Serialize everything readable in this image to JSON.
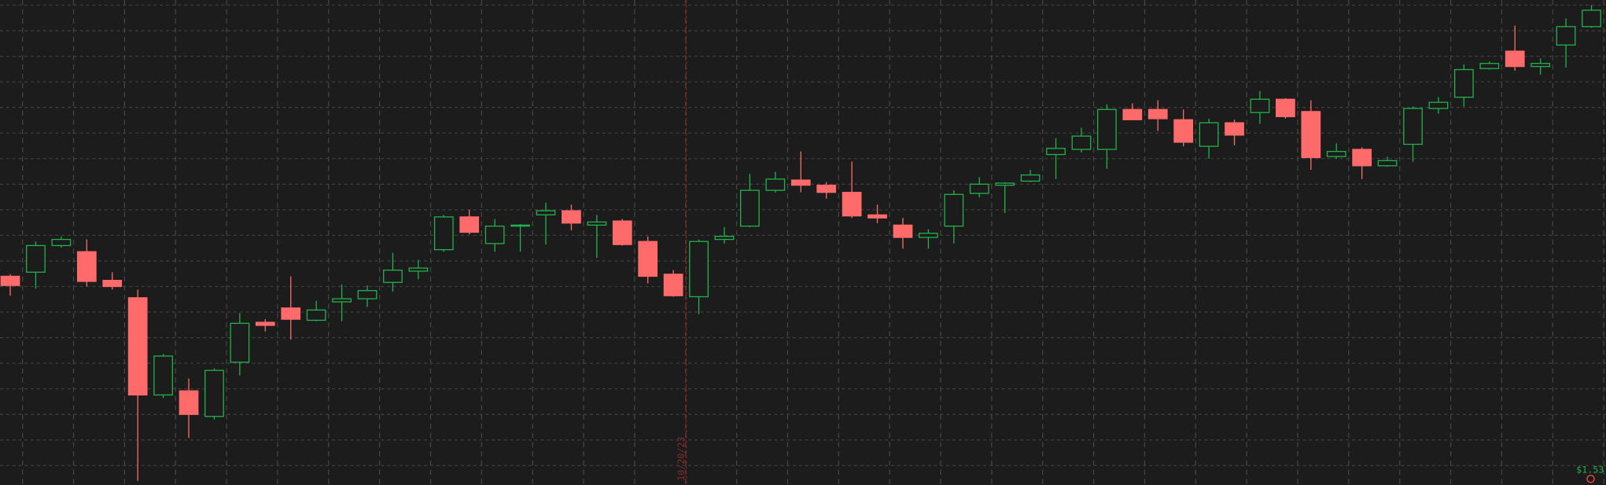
{
  "chart_data": {
    "type": "candlestick",
    "up_color": "#22b14c",
    "down_color": "#ff6b6b",
    "grid": true,
    "ylim": [
      0,
      474
    ],
    "open": [
      204,
      208,
      234,
      228,
      200,
      183,
      88,
      92,
      67,
      120,
      159,
      173,
      161,
      179,
      182,
      198,
      209,
      230,
      262,
      236,
      253,
      264,
      268,
      254,
      258,
      238,
      206,
      184,
      240,
      253,
      288,
      298,
      293,
      286,
      264,
      254,
      242,
      253,
      285,
      293,
      297,
      323,
      328,
      328,
      367,
      367,
      357,
      331,
      354,
      364,
      377,
      365,
      321,
      328,
      312,
      333,
      368,
      379,
      407,
      424,
      409,
      430,
      448
    ],
    "high": [
      206,
      238,
      243,
      240,
      208,
      191,
      128,
      104,
      114,
      168,
      162,
      204,
      180,
      196,
      195,
      227,
      220,
      264,
      269,
      260,
      255,
      276,
      274,
      264,
      260,
      243,
      210,
      240,
      252,
      304,
      306,
      326,
      296,
      316,
      274,
      261,
      250,
      288,
      301,
      296,
      308,
      339,
      349,
      372,
      373,
      376,
      367,
      358,
      357,
      385,
      378,
      376,
      334,
      330,
      321,
      370,
      379,
      411,
      414,
      449,
      417,
      456,
      469
    ],
    "low": [
      185,
      192,
      232,
      194,
      191,
      4,
      85,
      46,
      64,
      107,
      150,
      142,
      160,
      160,
      174,
      189,
      201,
      228,
      245,
      228,
      228,
      235,
      249,
      222,
      234,
      197,
      184,
      167,
      236,
      252,
      286,
      286,
      280,
      261,
      256,
      231,
      231,
      236,
      281,
      266,
      296,
      299,
      325,
      309,
      357,
      346,
      331,
      319,
      332,
      353,
      358,
      308,
      319,
      299,
      311,
      316,
      363,
      370,
      406,
      405,
      401,
      408,
      447
    ],
    "close": [
      195,
      234,
      240,
      199,
      194,
      88,
      126,
      69,
      112,
      158,
      156,
      162,
      171,
      182,
      190,
      210,
      212,
      262,
      247,
      253,
      254,
      268,
      256,
      257,
      235,
      204,
      185,
      238,
      243,
      288,
      299,
      293,
      286,
      263,
      261,
      242,
      246,
      284,
      294,
      295,
      303,
      329,
      341,
      367,
      357,
      358,
      335,
      354,
      342,
      377,
      360,
      320,
      326,
      312,
      317,
      368,
      374,
      406,
      412,
      409,
      412,
      448,
      464
    ],
    "marker_label": "10/20/23",
    "price_label": "$1.53"
  }
}
